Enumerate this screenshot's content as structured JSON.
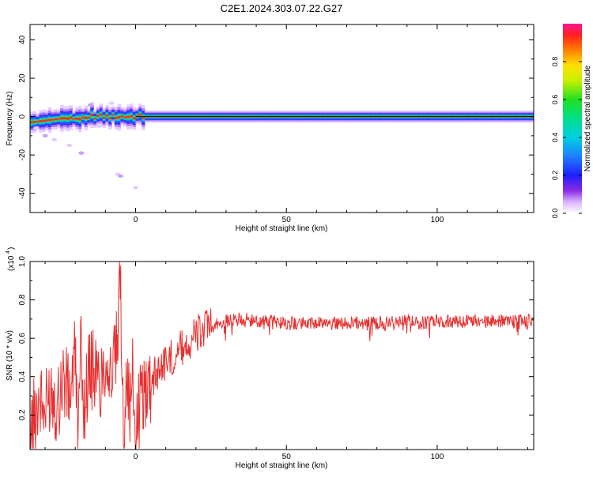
{
  "page_title": "C2E1.2024.303.07.22.G27",
  "chart_data": [
    {
      "type": "heatmap",
      "title": "C2E1.2024.303.07.22.G27",
      "xlabel": "Height of straight line (km)",
      "ylabel": "Frequency (Hz)",
      "xlim": [
        -35,
        132
      ],
      "ylim": [
        -50,
        48
      ],
      "x_ticks": [
        0,
        50,
        100
      ],
      "y_ticks": [
        -40,
        -20,
        0,
        20,
        40
      ],
      "colorbar": {
        "label": "Normalized spectral amplitude",
        "range": [
          0,
          1
        ],
        "ticks": [
          0.0,
          0.2,
          0.4,
          0.6,
          0.8
        ]
      },
      "ridge_frequency_hz": 0
    },
    {
      "type": "line",
      "xlabel": "Height of straight line (km)",
      "ylabel": "SNR (10 * v/v)",
      "y_scale_note": "(x10",
      "y_scale_exp": "4",
      "xlim": [
        -35,
        132
      ],
      "ylim": [
        0.02,
        1.0
      ],
      "x_ticks": [
        0,
        50,
        100
      ],
      "y_ticks": [
        0.2,
        0.4,
        0.6,
        0.8,
        1.0
      ],
      "color": "#e83030",
      "x": [
        -35,
        -32,
        -30,
        -28,
        -26,
        -24,
        -22,
        -20,
        -19,
        -18,
        -17,
        -16,
        -14,
        -12,
        -10,
        -8,
        -6,
        -5,
        -4,
        -3,
        -2,
        -1,
        0,
        2,
        4,
        6,
        8,
        10,
        12,
        15,
        18,
        20,
        25,
        30,
        35,
        40,
        45,
        50,
        55,
        60,
        65,
        70,
        75,
        80,
        85,
        90,
        95,
        100,
        105,
        110,
        115,
        120,
        125,
        130,
        132
      ],
      "y": [
        0.1,
        0.3,
        0.2,
        0.35,
        0.25,
        0.4,
        0.3,
        0.5,
        0.1,
        0.6,
        0.2,
        0.4,
        0.45,
        0.35,
        0.5,
        0.4,
        0.55,
        0.95,
        0.05,
        0.5,
        0.2,
        0.4,
        0.1,
        0.3,
        0.35,
        0.4,
        0.45,
        0.48,
        0.5,
        0.55,
        0.58,
        0.62,
        0.66,
        0.69,
        0.7,
        0.69,
        0.69,
        0.68,
        0.68,
        0.68,
        0.68,
        0.68,
        0.68,
        0.68,
        0.68,
        0.69,
        0.68,
        0.69,
        0.69,
        0.69,
        0.69,
        0.69,
        0.69,
        0.69,
        0.7
      ]
    }
  ]
}
